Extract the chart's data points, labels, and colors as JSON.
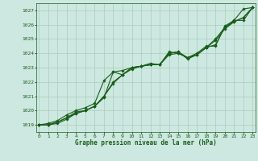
{
  "title": "Graphe pression niveau de la mer (hPa)",
  "hours": [
    0,
    1,
    2,
    3,
    4,
    5,
    6,
    7,
    8,
    9,
    10,
    11,
    12,
    13,
    14,
    15,
    16,
    17,
    18,
    19,
    20,
    21,
    22,
    23
  ],
  "ylim": [
    1018.5,
    1027.5
  ],
  "xlim": [
    -0.3,
    23.3
  ],
  "yticks": [
    1019,
    1020,
    1021,
    1022,
    1023,
    1024,
    1025,
    1026,
    1027
  ],
  "bg_color": "#cce8e0",
  "grid_color": "#aaccbb",
  "line_color": "#1a5c1a",
  "line_width": 0.8,
  "marker": "D",
  "marker_size": 1.8,
  "series": [
    [
      1019.0,
      1019.0,
      1019.1,
      1019.4,
      1019.8,
      1020.0,
      1020.3,
      1020.9,
      1022.7,
      1022.8,
      1023.0,
      1023.1,
      1023.2,
      1023.2,
      1024.1,
      1024.0,
      1023.7,
      1024.0,
      1024.5,
      1024.5,
      1025.9,
      1026.3,
      1027.1,
      1027.2
    ],
    [
      1019.0,
      1019.0,
      1019.2,
      1019.5,
      1019.8,
      1020.0,
      1020.3,
      1021.0,
      1022.0,
      1022.5,
      1022.9,
      1023.1,
      1023.2,
      1023.2,
      1023.9,
      1024.0,
      1023.7,
      1023.9,
      1024.4,
      1024.6,
      1025.8,
      1026.3,
      1026.3,
      1027.2
    ],
    [
      1019.0,
      1019.0,
      1019.2,
      1019.5,
      1019.9,
      1020.0,
      1020.3,
      1021.0,
      1021.9,
      1022.5,
      1023.0,
      1023.1,
      1023.2,
      1023.2,
      1024.0,
      1024.1,
      1023.6,
      1023.9,
      1024.4,
      1024.9,
      1025.7,
      1026.2,
      1026.5,
      1027.2
    ],
    [
      1019.0,
      1019.1,
      1019.3,
      1019.7,
      1020.0,
      1020.2,
      1020.5,
      1022.1,
      1022.7,
      1022.5,
      1023.0,
      1023.1,
      1023.3,
      1023.2,
      1024.0,
      1024.1,
      1023.7,
      1023.9,
      1024.4,
      1025.0,
      1025.8,
      1026.2,
      1026.5,
      1027.2
    ]
  ]
}
